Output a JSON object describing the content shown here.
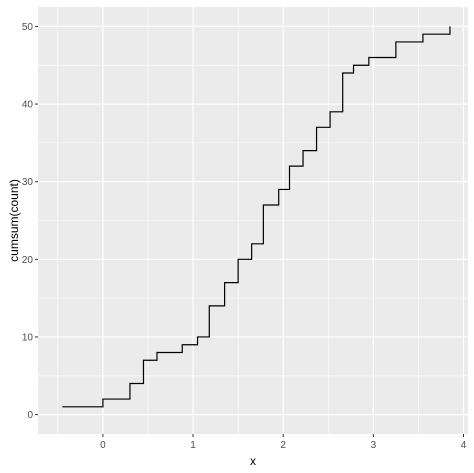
{
  "chart_data": {
    "type": "line",
    "line_style": "step",
    "xlabel": "x",
    "ylabel": "cumsum(count)",
    "xlim": [
      -0.72,
      4.05
    ],
    "ylim": [
      -2.5,
      52.5
    ],
    "x_ticks": [
      0,
      1,
      2,
      3,
      4
    ],
    "y_ticks": [
      0,
      10,
      20,
      30,
      40,
      50
    ],
    "x_tick_labels": [
      "0",
      "1",
      "2",
      "3",
      "4"
    ],
    "y_tick_labels": [
      "0",
      "10",
      "20",
      "30",
      "40",
      "50"
    ],
    "grid": true,
    "legend": "none",
    "colors": {
      "panel": "#ebebeb",
      "grid": "#ffffff",
      "line": "#000000"
    },
    "series": [
      {
        "x": [
          -0.45,
          0.0,
          0.3,
          0.45,
          0.6,
          0.88,
          1.05,
          1.18,
          1.35,
          1.5,
          1.65,
          1.78,
          1.95,
          2.07,
          2.22,
          2.37,
          2.52,
          2.66,
          2.78,
          2.95,
          3.25,
          3.55,
          3.85
        ],
        "y": [
          1,
          2,
          4,
          7,
          8,
          9,
          10,
          14,
          17,
          20,
          22,
          27,
          29,
          32,
          34,
          37,
          39,
          44,
          45,
          46,
          48,
          49,
          50
        ]
      }
    ]
  }
}
